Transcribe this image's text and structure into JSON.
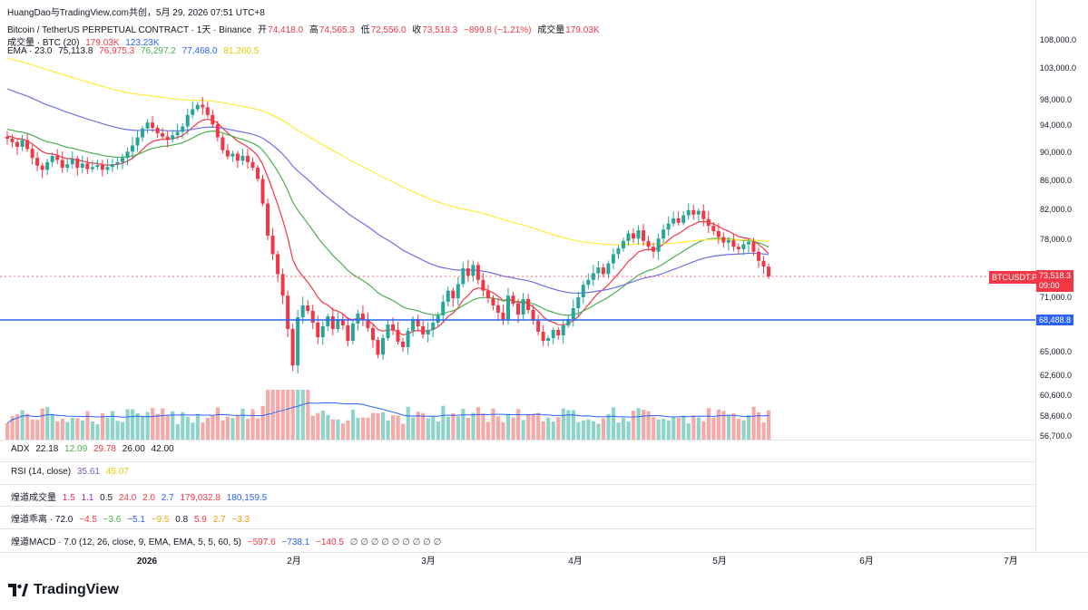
{
  "header": {
    "share_line": "HuangDao与TradingView.com共创，5月 29, 2026 07:51 UTC+8",
    "symbol": "Bitcoin / TetherUS PERPETUAL CONTRACT · 1天 · Binance",
    "ohlc": {
      "open_label": "开",
      "open": "74,418.0",
      "high_label": "高",
      "high": "74,565.3",
      "low_label": "低",
      "low": "72,556.0",
      "close_label": "收",
      "close": "73,518.3",
      "change": "−899.8 (−1.21%)",
      "volume_label": "成交量",
      "volume": "179.03K"
    },
    "volume_legend": {
      "label": "成交量 · BTC (20)",
      "v1": "179.03K",
      "v2": "123.23K"
    },
    "ema_legend": {
      "label": "EMA · 23.0",
      "v1": "75,113.8",
      "v2": "76,975.3",
      "v3": "76,297.2",
      "v4": "77,468.0",
      "v5": "81,260.5"
    }
  },
  "price_axis": [
    "108,000.0",
    "103,000.0",
    "98,000.0",
    "94,000.0",
    "90,000.0",
    "86,000.0",
    "82,000.0",
    "78,000.0",
    "71,000.0",
    "65,000.0",
    "62,600.0",
    "60,600.0",
    "58,600.0",
    "56,700.0"
  ],
  "time_axis": [
    "2026",
    "2月",
    "3月",
    "4月",
    "5月",
    "6月",
    "7月"
  ],
  "tags": {
    "ticker": "BTCUSDT.P",
    "last_price": "73,518.3",
    "countdown": "09:00",
    "hline_price": "68,488.8"
  },
  "panes": {
    "adx": {
      "label": "ADX",
      "values": [
        "22.18",
        "12.09",
        "29.78",
        "26.00",
        "42.00"
      ]
    },
    "rsi": {
      "label": "RSI (14, close)",
      "values": [
        "35.61",
        "45.07"
      ]
    },
    "vol2": {
      "label": "煌道成交量",
      "values": [
        "1.5",
        "1.1",
        "0.5",
        "24.0",
        "2.0",
        "2.7",
        "179,032.8",
        "180,159.5"
      ]
    },
    "dev": {
      "label": "煌道乖离 · 72.0",
      "values": [
        "−4.5",
        "−3.6",
        "−5.1",
        "−9.5",
        "0.8",
        "5.9",
        "2.7",
        "−3.3"
      ]
    },
    "macd": {
      "label": "煌道MACD · 7.0 (12, 26, close, 9, EMA, EMA, 5, 5, 60, 5)",
      "values": [
        "−597.6",
        "−738.1",
        "−140.5"
      ],
      "empty": "∅ ∅ ∅ ∅ ∅ ∅ ∅ ∅ ∅"
    }
  },
  "brand": "TradingView",
  "colors": {
    "up": "#26a69a",
    "down": "#f23645",
    "hline": "#2962ff",
    "ema1": "#f23645",
    "ema2": "#4caf50",
    "ema3": "#6e6ee8",
    "ema4": "#ffeb3b"
  },
  "chart_data": {
    "type": "candlestick",
    "time_axis_labels": [
      "2026",
      "2月",
      "3月",
      "4月",
      "5月",
      "6月",
      "7月"
    ],
    "approx_daily_closes_from_early_dec_2025_to_may_28_2026": [
      92000,
      91500,
      90800,
      91800,
      90500,
      89200,
      88100,
      87500,
      88600,
      89500,
      88900,
      87800,
      88300,
      89100,
      87800,
      88400,
      87600,
      87900,
      88200,
      87500,
      87900,
      88300,
      88600,
      89200,
      90100,
      91000,
      92200,
      93500,
      94400,
      93600,
      92800,
      92300,
      91900,
      92500,
      93000,
      93800,
      95600,
      96500,
      97200,
      96800,
      95600,
      94100,
      92200,
      90300,
      89400,
      89800,
      88800,
      89500,
      88600,
      87800,
      86200,
      82800,
      78500,
      76200,
      73800,
      71200,
      67500,
      63600,
      68800,
      70100,
      69500,
      68200,
      66600,
      67800,
      68900,
      67500,
      68600,
      67900,
      66200,
      68100,
      69200,
      68500,
      67600,
      66300,
      64700,
      66500,
      68000,
      67400,
      66100,
      65500,
      67300,
      68600,
      67800,
      66900,
      67400,
      68200,
      69000,
      70500,
      71800,
      70900,
      72600,
      74500,
      73600,
      74900,
      73100,
      71800,
      70900,
      70100,
      69300,
      68500,
      71200,
      70300,
      69100,
      70800,
      69600,
      68400,
      67200,
      66200,
      66500,
      67400,
      66800,
      67900,
      68600,
      69800,
      71000,
      72500,
      73100,
      73900,
      74600,
      73800,
      75100,
      76200,
      76900,
      77800,
      78800,
      78100,
      79200,
      77800,
      77100,
      76500,
      78100,
      79300,
      80100,
      80800,
      80200,
      81200,
      81900,
      81300,
      81800,
      80700,
      79800,
      79100,
      78300,
      77600,
      77900,
      77100,
      76800,
      77400,
      77700,
      76500,
      75400,
      74700,
      73518
    ]
  }
}
